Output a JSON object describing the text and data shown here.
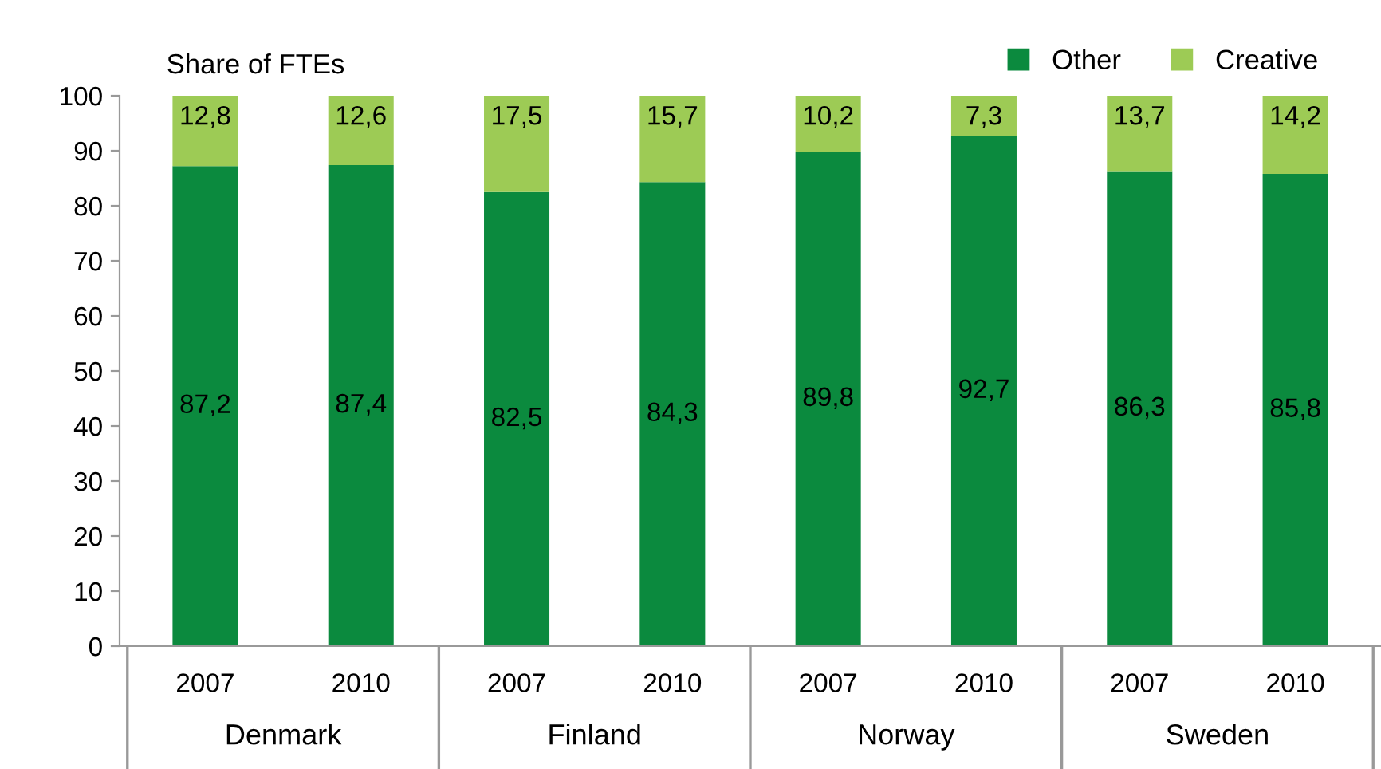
{
  "chart_data": {
    "type": "bar",
    "stacked": true,
    "ylabel": "Share of FTEs",
    "categories": [
      "2007",
      "2010",
      "2007",
      "2010",
      "2007",
      "2010",
      "2007",
      "2010"
    ],
    "series": [
      {
        "name": "Other",
        "color": "#0b8a3e",
        "values": [
          87.2,
          87.4,
          82.5,
          84.3,
          89.8,
          92.7,
          86.3,
          85.8
        ],
        "value_labels": [
          "87,2",
          "87,4",
          "82,5",
          "84,3",
          "89,8",
          "92,7",
          "86,3",
          "85,8"
        ]
      },
      {
        "name": "Creative",
        "color": "#9dcb55",
        "values": [
          12.8,
          12.6,
          17.5,
          15.7,
          10.2,
          7.3,
          13.7,
          14.2
        ],
        "value_labels": [
          "12,8",
          "12,6",
          "17,5",
          "15,7",
          "10,2",
          "7,3",
          "13,7",
          "14,2"
        ]
      }
    ],
    "annotations": [
      "Denmark",
      "Finland",
      "Norway",
      "Sweden"
    ],
    "ylim": [
      0,
      100
    ],
    "yticks": [
      0,
      10,
      20,
      30,
      40,
      50,
      60,
      70,
      80,
      90,
      100
    ],
    "grid": false,
    "legend": "top right",
    "marker": "square"
  }
}
